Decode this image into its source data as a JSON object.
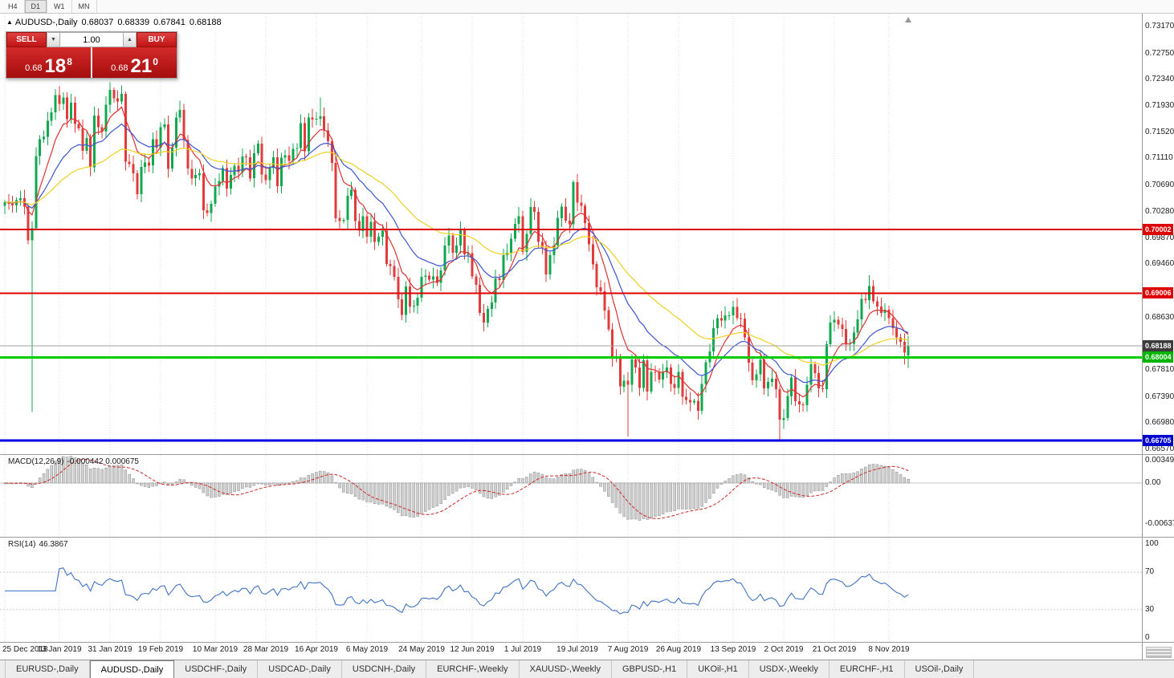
{
  "toolbar": {
    "timeframes": [
      "H4",
      "D1",
      "W1",
      "MN"
    ],
    "active": "D1"
  },
  "chart": {
    "symbol": "AUDUSD-,Daily",
    "open": "0.68037",
    "high": "0.68339",
    "low": "0.67841",
    "close": "0.68188"
  },
  "icons": {
    "symbol_marker": "▲",
    "volume_up": "▲",
    "volume_down": "▼"
  },
  "trade_widget": {
    "sell_label": "SELL",
    "buy_label": "BUY",
    "volume": "1.00",
    "sell_price": {
      "prefix": "0.68",
      "big": "18",
      "pip": "8"
    },
    "buy_price": {
      "prefix": "0.68",
      "big": "21",
      "pip": "0"
    }
  },
  "price_axis": {
    "labels": [
      "0.73170",
      "0.72750",
      "0.72340",
      "0.71930",
      "0.71520",
      "0.71110",
      "0.70690",
      "0.70280",
      "0.69870",
      "0.69460",
      "0.68630",
      "0.67810",
      "0.67390",
      "0.66980",
      "0.66570"
    ]
  },
  "macd_panel": {
    "label": "MACD(12,26,9)",
    "values": "-0.000442 0.000675",
    "axis": [
      "0.00349",
      "0.00",
      "-0.00637"
    ]
  },
  "rsi_panel": {
    "label": "RSI(14)",
    "value": "46.3867",
    "axis": [
      "100",
      "70",
      "30",
      "0"
    ]
  },
  "tabs": {
    "items": [
      "EURUSD-,Daily",
      "AUDUSD-,Daily",
      "USDCHF-,Daily",
      "USDCAD-,Daily",
      "USDCNH-,Daily",
      "EURCHF-,Weekly",
      "XAUUSD-,Weekly",
      "GBPUSD-,H1",
      "UKOil-,H1",
      "USDX-,Weekly",
      "EURCHF-,H1",
      "USOil-,Daily"
    ],
    "active_index": 1
  },
  "chart_data": {
    "type": "candlestick",
    "title": "AUDUSD-,Daily",
    "current_ohlc": {
      "open": 0.68037,
      "high": 0.68339,
      "low": 0.67841,
      "close": 0.68188
    },
    "y_axis": {
      "top": 0.7317,
      "bottom": 0.6657
    },
    "colors": {
      "up": "#0fa84e",
      "down": "#e23b3b",
      "grid": "#dcdcdc",
      "macd_hist": "#cfcfcf",
      "macd_signal": "#cc2929",
      "rsi_line": "#3f72c4"
    },
    "levels": [
      {
        "price": 0.70002,
        "label": "0.70002",
        "color": "#dd0101",
        "badge": "#dd0101",
        "width": 2
      },
      {
        "price": 0.69006,
        "label": "0.69006",
        "color": "#dd0101",
        "badge": "#dd0101",
        "width": 2
      },
      {
        "price": 0.68188,
        "label": "0.68188",
        "color": "#a0a0a0",
        "badge": "#3c3c3c",
        "width": 1
      },
      {
        "price": 0.68004,
        "label": "0.68004",
        "color": "#00cc00",
        "badge": "#00b400",
        "width": 3
      },
      {
        "price": 0.66705,
        "label": "0.66705",
        "color": "#0000e0",
        "badge": "#0000cd",
        "width": 3
      }
    ],
    "tick_indices": [
      0,
      14,
      27,
      40,
      54,
      67,
      80,
      93,
      107,
      120,
      133,
      147,
      160,
      173,
      187,
      200,
      213,
      227
    ],
    "tick_labels": [
      "25 Dec 2018",
      "13 Jan 2019",
      "31 Jan 2019",
      "19 Feb 2019",
      "10 Mar 2019",
      "28 Mar 2019",
      "16 Apr 2019",
      "6 May 2019",
      "24 May 2019",
      "12 Jun 2019",
      "1 Jul 2019",
      "19 Jul 2019",
      "7 Aug 2019",
      "26 Aug 2019",
      "13 Sep 2019",
      "2 Oct 2019",
      "21 Oct 2019",
      "8 Nov 2019"
    ],
    "moving_averages": [
      {
        "type": "ema",
        "period": 8,
        "color": "#e03030"
      },
      {
        "type": "ema",
        "period": 20,
        "color": "#3b55d0"
      },
      {
        "type": "ema",
        "period": 45,
        "color": "#f0d020"
      }
    ],
    "indicators": {
      "macd": {
        "fast": 12,
        "slow": 26,
        "signal": 9,
        "current_main": -0.000442,
        "current_signal": 0.000675
      },
      "rsi": {
        "period": 14,
        "current": 46.3867
      }
    },
    "closes": [
      0.7043,
      0.704,
      0.7038,
      0.7046,
      0.7049,
      0.7036,
      0.6983,
      0.7002,
      0.7115,
      0.7141,
      0.7145,
      0.717,
      0.7183,
      0.721,
      0.7196,
      0.7206,
      0.7172,
      0.7198,
      0.7165,
      0.7158,
      0.7123,
      0.7143,
      0.7097,
      0.7178,
      0.716,
      0.7153,
      0.7195,
      0.7218,
      0.7205,
      0.72,
      0.7212,
      0.7106,
      0.7102,
      0.7088,
      0.7055,
      0.7098,
      0.7105,
      0.71,
      0.7141,
      0.7128,
      0.716,
      0.7164,
      0.7095,
      0.7128,
      0.7175,
      0.7187,
      0.714,
      0.7095,
      0.708,
      0.7085,
      0.7088,
      0.703,
      0.7026,
      0.704,
      0.7067,
      0.7076,
      0.7096,
      0.7064,
      0.7085,
      0.71,
      0.709,
      0.7114,
      0.7113,
      0.708,
      0.7119,
      0.7134,
      0.7086,
      0.7077,
      0.7096,
      0.7113,
      0.7068,
      0.7112,
      0.7116,
      0.7107,
      0.7126,
      0.7127,
      0.7166,
      0.7122,
      0.7175,
      0.7172,
      0.7173,
      0.7177,
      0.7155,
      0.7138,
      0.7104,
      0.7018,
      0.7013,
      0.7015,
      0.7053,
      0.7062,
      0.7013,
      0.6998,
      0.7021,
      0.6989,
      0.7012,
      0.6981,
      0.6989,
      0.6998,
      0.6946,
      0.6943,
      0.6926,
      0.6891,
      0.6867,
      0.6911,
      0.688,
      0.6881,
      0.6894,
      0.6926,
      0.6928,
      0.6922,
      0.6927,
      0.6917,
      0.6936,
      0.6975,
      0.6991,
      0.6964,
      0.6975,
      0.7,
      0.6961,
      0.6963,
      0.6927,
      0.6914,
      0.687,
      0.6855,
      0.6876,
      0.6886,
      0.6924,
      0.6921,
      0.696,
      0.6964,
      0.6986,
      0.7009,
      0.7021,
      0.6965,
      0.6993,
      0.7035,
      0.7028,
      0.6981,
      0.6972,
      0.693,
      0.696,
      0.6975,
      0.7018,
      0.7036,
      0.7014,
      0.7008,
      0.7074,
      0.7042,
      0.7037,
      0.701,
      0.6977,
      0.6946,
      0.691,
      0.6904,
      0.6874,
      0.6844,
      0.68,
      0.6799,
      0.6755,
      0.6764,
      0.6758,
      0.6797,
      0.6785,
      0.6753,
      0.6796,
      0.6747,
      0.6778,
      0.6777,
      0.6766,
      0.6777,
      0.6785,
      0.6759,
      0.6753,
      0.6778,
      0.6739,
      0.6734,
      0.673,
      0.6733,
      0.6717,
      0.6759,
      0.6793,
      0.681,
      0.6846,
      0.6862,
      0.6858,
      0.6866,
      0.6866,
      0.6879,
      0.6862,
      0.6861,
      0.6832,
      0.6792,
      0.6765,
      0.6774,
      0.6797,
      0.6752,
      0.6762,
      0.6767,
      0.6751,
      0.6703,
      0.6706,
      0.674,
      0.6769,
      0.6732,
      0.6727,
      0.6726,
      0.6758,
      0.679,
      0.6776,
      0.6752,
      0.6751,
      0.6821,
      0.6855,
      0.6859,
      0.6852,
      0.6845,
      0.6821,
      0.6822,
      0.6839,
      0.686,
      0.6892,
      0.689,
      0.6912,
      0.6888,
      0.688,
      0.687,
      0.6875,
      0.6862,
      0.6846,
      0.6832,
      0.6825,
      0.6808,
      0.68188
    ],
    "special_candles": {
      "7": {
        "low": 0.6715
      },
      "81": {
        "high": 0.7206
      },
      "160": {
        "low": 0.6677
      },
      "199": {
        "low": 0.6672
      },
      "222": {
        "high": 0.6929
      },
      "231": {
        "low": 0.679
      },
      "232": {
        "open": 0.68037,
        "high": 0.68339,
        "low": 0.67841
      }
    }
  }
}
